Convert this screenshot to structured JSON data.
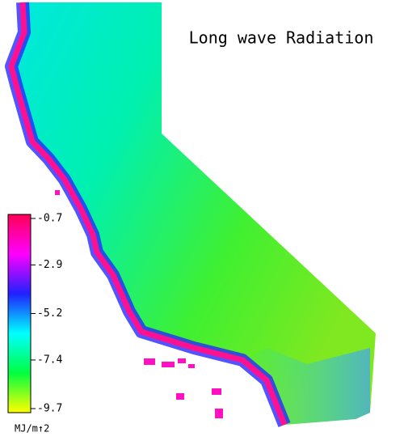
{
  "title": "Long wave Radiation",
  "colorbar": {
    "label": "MJ/m↑2",
    "lim": [
      -9.7,
      -0.7
    ],
    "ticks": [
      -0.7,
      -2.9,
      -5.2,
      -7.4,
      -9.7
    ],
    "colors": [
      "#ff0055",
      "#ff00ff",
      "#2020ff",
      "#00ffff",
      "#00ff40",
      "#ffff00"
    ]
  }
}
